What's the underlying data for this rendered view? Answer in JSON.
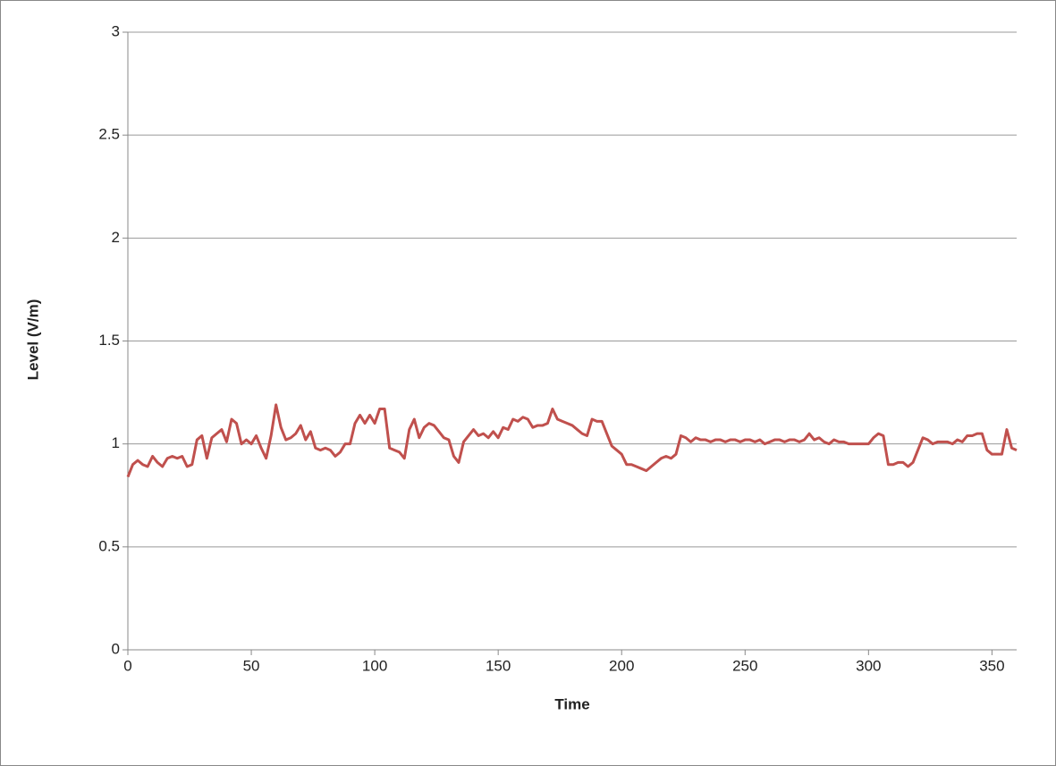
{
  "chart_data": {
    "type": "line",
    "x_label": "Time",
    "y_label": "Level (V/m)",
    "xlim": [
      0,
      360
    ],
    "xticks": [
      0,
      50,
      100,
      150,
      200,
      250,
      300,
      350
    ],
    "ylim": [
      0,
      3
    ],
    "yticks": [
      0,
      0.5,
      1,
      1.5,
      2,
      2.5,
      3
    ],
    "grid": true,
    "x": [
      0,
      2,
      4,
      6,
      8,
      10,
      12,
      14,
      16,
      18,
      20,
      22,
      24,
      26,
      28,
      30,
      32,
      34,
      36,
      38,
      40,
      42,
      44,
      46,
      48,
      50,
      52,
      54,
      56,
      58,
      60,
      62,
      64,
      66,
      68,
      70,
      72,
      74,
      76,
      78,
      80,
      82,
      84,
      86,
      88,
      90,
      92,
      94,
      96,
      98,
      100,
      102,
      104,
      106,
      108,
      110,
      112,
      114,
      116,
      118,
      120,
      122,
      124,
      126,
      128,
      130,
      132,
      134,
      136,
      138,
      140,
      142,
      144,
      146,
      148,
      150,
      152,
      154,
      156,
      158,
      160,
      162,
      164,
      166,
      168,
      170,
      172,
      174,
      176,
      178,
      180,
      182,
      184,
      186,
      188,
      190,
      192,
      194,
      196,
      198,
      200,
      202,
      204,
      206,
      208,
      210,
      212,
      214,
      216,
      218,
      220,
      222,
      224,
      226,
      228,
      230,
      232,
      234,
      236,
      238,
      240,
      242,
      244,
      246,
      248,
      250,
      252,
      254,
      256,
      258,
      260,
      262,
      264,
      266,
      268,
      270,
      272,
      274,
      276,
      278,
      280,
      282,
      284,
      286,
      288,
      290,
      292,
      294,
      296,
      298,
      300,
      302,
      304,
      306,
      308,
      310,
      312,
      314,
      316,
      318,
      320,
      322,
      324,
      326,
      328,
      330,
      332,
      334,
      336,
      338,
      340,
      342,
      344,
      346,
      348,
      350,
      352,
      354,
      356,
      358,
      360
    ],
    "series": [
      {
        "color": "#c0504d",
        "values": [
          0.84,
          0.9,
          0.92,
          0.9,
          0.89,
          0.94,
          0.91,
          0.89,
          0.93,
          0.94,
          0.93,
          0.94,
          0.89,
          0.9,
          1.02,
          1.04,
          0.93,
          1.03,
          1.05,
          1.07,
          1.01,
          1.12,
          1.1,
          1.0,
          1.02,
          1.0,
          1.04,
          0.98,
          0.93,
          1.04,
          1.19,
          1.08,
          1.02,
          1.03,
          1.05,
          1.09,
          1.02,
          1.06,
          0.98,
          0.97,
          0.98,
          0.97,
          0.94,
          0.96,
          1.0,
          1.0,
          1.1,
          1.14,
          1.1,
          1.14,
          1.1,
          1.17,
          1.17,
          0.98,
          0.97,
          0.96,
          0.93,
          1.07,
          1.12,
          1.03,
          1.08,
          1.1,
          1.09,
          1.06,
          1.03,
          1.02,
          0.94,
          0.91,
          1.01,
          1.04,
          1.07,
          1.04,
          1.05,
          1.03,
          1.06,
          1.03,
          1.08,
          1.07,
          1.12,
          1.11,
          1.13,
          1.12,
          1.08,
          1.09,
          1.09,
          1.1,
          1.17,
          1.12,
          1.11,
          1.1,
          1.09,
          1.07,
          1.05,
          1.04,
          1.12,
          1.11,
          1.11,
          1.05,
          0.99,
          0.97,
          0.95,
          0.9,
          0.9,
          0.89,
          0.88,
          0.87,
          0.89,
          0.91,
          0.93,
          0.94,
          0.93,
          0.95,
          1.04,
          1.03,
          1.01,
          1.03,
          1.02,
          1.02,
          1.01,
          1.02,
          1.02,
          1.01,
          1.02,
          1.02,
          1.01,
          1.02,
          1.02,
          1.01,
          1.02,
          1.0,
          1.01,
          1.02,
          1.02,
          1.01,
          1.02,
          1.02,
          1.01,
          1.02,
          1.05,
          1.02,
          1.03,
          1.01,
          1.0,
          1.02,
          1.01,
          1.01,
          1.0,
          1.0,
          1.0,
          1.0,
          1.0,
          1.03,
          1.05,
          1.04,
          0.9,
          0.9,
          0.91,
          0.91,
          0.89,
          0.91,
          0.97,
          1.03,
          1.02,
          1.0,
          1.01,
          1.01,
          1.01,
          1.0,
          1.02,
          1.01,
          1.04,
          1.04,
          1.05,
          1.05,
          0.97,
          0.95,
          0.95,
          0.95,
          1.07,
          0.98,
          0.97
        ]
      }
    ]
  }
}
